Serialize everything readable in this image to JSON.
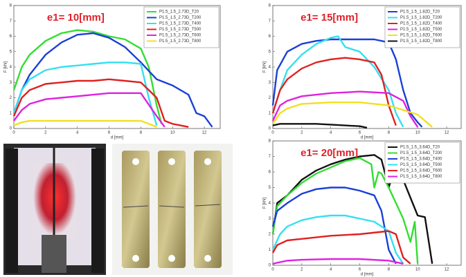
{
  "chart_data": [
    {
      "type": "line",
      "title": "e1= 10[mm]",
      "xlabel": "d [mm]",
      "ylabel": "F [kN]",
      "xlim": [
        0,
        13
      ],
      "ylim": [
        0,
        8
      ],
      "xticks": [
        0,
        2,
        4,
        6,
        8,
        10,
        12
      ],
      "yticks": [
        0,
        1,
        2,
        3,
        4,
        5,
        6,
        7,
        8
      ],
      "series": [
        {
          "name": "P1.5_1.5_2.73D_T20",
          "color": "#33dd33",
          "x": [
            0,
            0.5,
            1,
            2,
            3,
            4,
            5,
            6,
            7,
            8,
            8.5,
            9,
            9.3
          ],
          "values": [
            2.5,
            4,
            4.8,
            5.7,
            6.2,
            6.4,
            6.3,
            6.0,
            5.8,
            5.2,
            4.0,
            1.5,
            0.3
          ]
        },
        {
          "name": "P1.5_1.5_2.73D_T200",
          "color": "#1a3fd6",
          "x": [
            0,
            0.5,
            1,
            2,
            3,
            4,
            5,
            6,
            7,
            8,
            9,
            10,
            11,
            11.5,
            12,
            12.5
          ],
          "values": [
            1,
            2.5,
            3.5,
            4.8,
            5.6,
            6.1,
            6.2,
            5.9,
            5.3,
            4.3,
            3.2,
            2.8,
            2.2,
            1.0,
            0.8,
            0.1
          ]
        },
        {
          "name": "P1.5_1.5_2.73D_T400",
          "color": "#33e0f0",
          "x": [
            0,
            0.5,
            1,
            2,
            3,
            4,
            5,
            6,
            7,
            8,
            8.5,
            9
          ],
          "values": [
            1,
            2.5,
            3.2,
            3.8,
            4.0,
            4.1,
            4.2,
            4.3,
            4.3,
            4.2,
            2.0,
            0.2
          ]
        },
        {
          "name": "P1.5_1.5_2.73D_T500",
          "color": "#e02020",
          "x": [
            0,
            0.5,
            1,
            2,
            3,
            4,
            5,
            6,
            7,
            8,
            9,
            9.5,
            10,
            11
          ],
          "values": [
            0.8,
            2,
            2.5,
            2.9,
            3.0,
            3.1,
            3.1,
            3.2,
            3.1,
            3.0,
            2.0,
            0.5,
            0.3,
            0.1
          ]
        },
        {
          "name": "P1.5_1.5_2.73D_T600",
          "color": "#e020e0",
          "x": [
            0,
            0.5,
            1,
            2,
            3,
            4,
            5,
            6,
            7,
            8,
            9,
            9.5
          ],
          "values": [
            0.5,
            1.2,
            1.6,
            1.9,
            2.0,
            2.1,
            2.2,
            2.3,
            2.3,
            2.3,
            0.8,
            0.1
          ]
        },
        {
          "name": "P1.5_1.5_2.73D_T800",
          "color": "#f0e020",
          "x": [
            0,
            0.5,
            1,
            2,
            4,
            6,
            8,
            8.5,
            9
          ],
          "values": [
            0.2,
            0.4,
            0.5,
            0.5,
            0.5,
            0.5,
            0.5,
            0.3,
            0.1
          ]
        }
      ]
    },
    {
      "type": "line",
      "title": "e1= 15[mm]",
      "xlabel": "d [mm]",
      "ylabel": "F [kN]",
      "xlim": [
        0,
        13
      ],
      "ylim": [
        0,
        8
      ],
      "xticks": [
        0,
        2,
        4,
        6,
        8,
        10,
        12
      ],
      "yticks": [
        0,
        1,
        2,
        3,
        4,
        5,
        6,
        7,
        8
      ],
      "series": [
        {
          "name": "P1.5_1.5_1.82D_T20",
          "color": "#1a3fd6",
          "x": [
            0,
            0.3,
            1,
            2,
            3,
            4,
            5,
            6,
            7,
            8,
            8.5,
            9,
            9.5,
            10,
            10.3
          ],
          "values": [
            1.5,
            3.8,
            5,
            5.5,
            5.7,
            5.8,
            5.8,
            5.8,
            5.8,
            5.6,
            4.5,
            2.5,
            1.0,
            0.4,
            0.1
          ]
        },
        {
          "name": "P1.5_1.5_1.82D_T200",
          "color": "#33e0f0",
          "x": [
            0,
            0.5,
            1,
            2,
            3,
            4,
            4.5,
            5,
            6,
            7,
            8,
            8.5,
            9
          ],
          "values": [
            1,
            2.5,
            3.8,
            4.8,
            5.5,
            5.9,
            6.0,
            5.3,
            5.0,
            4.0,
            2.5,
            1.0,
            0.1
          ]
        },
        {
          "name": "P1.5_1.5_1.82D_T400",
          "color": "#e02020",
          "x": [
            0,
            0.5,
            1,
            2,
            3,
            4,
            5,
            6,
            7,
            7.5,
            8,
            8.5
          ],
          "values": [
            1,
            2.5,
            3.2,
            3.9,
            4.3,
            4.5,
            4.6,
            4.5,
            4.3,
            3.5,
            1.5,
            0.2
          ]
        },
        {
          "name": "P1.5_1.5_1.82D_T500",
          "color": "#e020e0",
          "x": [
            0,
            0.5,
            1,
            2,
            4,
            6,
            8,
            9,
            9.5,
            10
          ],
          "values": [
            0.5,
            1.5,
            1.8,
            2.1,
            2.3,
            2.4,
            2.3,
            1.8,
            0.8,
            0.1
          ]
        },
        {
          "name": "P1.5_1.5_1.82D_T600",
          "color": "#f0e020",
          "x": [
            0,
            0.5,
            1,
            2,
            4,
            6,
            8,
            10,
            11
          ],
          "values": [
            0.3,
            1,
            1.3,
            1.6,
            1.7,
            1.7,
            1.5,
            0.9,
            0.1
          ]
        },
        {
          "name": "P1.5_1.5_1.82D_T800",
          "color": "#111111",
          "x": [
            0,
            0.5,
            1,
            2,
            3,
            4,
            5,
            6,
            6.5
          ],
          "values": [
            0.2,
            0.3,
            0.3,
            0.3,
            0.3,
            0.25,
            0.2,
            0.15,
            0.05
          ]
        }
      ]
    },
    {
      "type": "line",
      "title": "e1= 20[mm]",
      "xlabel": "d [mm]",
      "ylabel": "F [kN]",
      "xlim": [
        0,
        13
      ],
      "ylim": [
        0,
        8
      ],
      "xticks": [
        0,
        2,
        4,
        6,
        8,
        10,
        12
      ],
      "yticks": [
        0,
        1,
        2,
        3,
        4,
        5,
        6,
        7,
        8
      ],
      "series": [
        {
          "name": "P1.5_1.5_3.64D_T20",
          "color": "#111111",
          "x": [
            0,
            0.3,
            1,
            2,
            3,
            4,
            5,
            6,
            7,
            7.5,
            8,
            8.5,
            9,
            10,
            10.5,
            11
          ],
          "values": [
            2,
            4,
            4.5,
            5.5,
            6.1,
            6.5,
            6.8,
            7,
            7.1,
            6.8,
            5,
            6.5,
            5.5,
            3.2,
            3.1,
            0.1
          ]
        },
        {
          "name": "P1.5_1.5_3.64D_T200",
          "color": "#33dd33",
          "x": [
            0,
            0.3,
            1,
            2,
            3,
            4,
            5,
            6,
            6.8,
            7,
            7.3,
            7.5,
            8,
            9,
            9.5,
            9.8,
            10
          ],
          "values": [
            2,
            3.8,
            4.5,
            5.3,
            5.9,
            6.3,
            6.7,
            6.9,
            6.5,
            5,
            6,
            5.9,
            5.0,
            3.0,
            1.5,
            2.8,
            0.1
          ]
        },
        {
          "name": "P1.5_1.5_3.64D_T400",
          "color": "#1a3fd6",
          "x": [
            0,
            0.3,
            1,
            2,
            3,
            4,
            5,
            6,
            7,
            7.5,
            8,
            8.5
          ],
          "values": [
            2.5,
            3.5,
            4.0,
            4.6,
            4.9,
            5.0,
            5.0,
            4.8,
            4.5,
            3.5,
            1.0,
            0.1
          ]
        },
        {
          "name": "P1.5_1.5_3.64D_T500",
          "color": "#33e0f0",
          "x": [
            0,
            0.5,
            1,
            2,
            3,
            4,
            5,
            6,
            7,
            8,
            8.5,
            9
          ],
          "values": [
            1,
            2,
            2.5,
            2.9,
            3.1,
            3.2,
            3.2,
            3.0,
            2.8,
            2.2,
            0.8,
            0.1
          ]
        },
        {
          "name": "P1.5_1.5_3.64D_T600",
          "color": "#e02020",
          "x": [
            0,
            0.3,
            1,
            2,
            4,
            6,
            8,
            8.5,
            9,
            9.5
          ],
          "values": [
            0.8,
            1.3,
            1.6,
            1.7,
            1.9,
            2.0,
            2.2,
            2.0,
            0.5,
            0.1
          ]
        },
        {
          "name": "P1.5_1.5_3.64D_T800",
          "color": "#e020e0",
          "x": [
            0,
            0.5,
            1,
            2,
            4,
            6,
            8,
            9
          ],
          "values": [
            0.1,
            0.2,
            0.3,
            0.35,
            0.4,
            0.4,
            0.3,
            0.1
          ]
        }
      ]
    }
  ]
}
